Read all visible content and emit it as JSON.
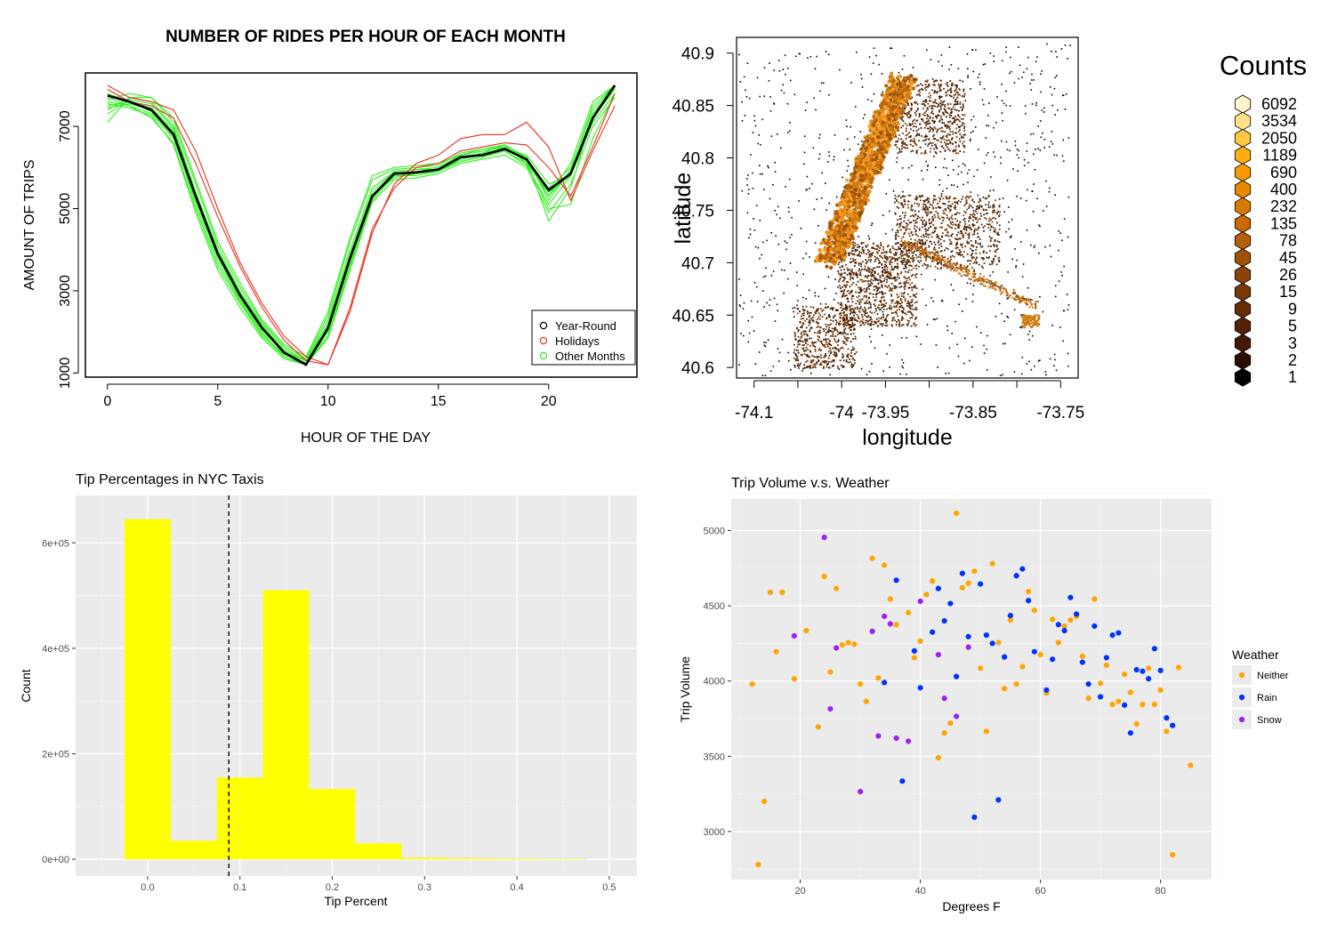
{
  "chart_data": [
    {
      "type": "line",
      "title": "NUMBER OF RIDES PER HOUR OF EACH MONTH",
      "xlabel": "HOUR OF THE DAY",
      "ylabel": "AMOUNT OF TRIPS",
      "xlim": [
        -1,
        24
      ],
      "ylim": [
        900,
        8300
      ],
      "xticks": [
        0,
        5,
        10,
        15,
        20
      ],
      "yticks": [
        1000,
        3000,
        5000,
        7000
      ],
      "x": [
        0,
        1,
        2,
        3,
        4,
        5,
        6,
        7,
        8,
        9,
        10,
        11,
        12,
        13,
        14,
        15,
        16,
        17,
        18,
        19,
        20,
        21,
        22,
        23
      ],
      "legend_position": "bottom-right",
      "colors": {
        "year_round": "#000000",
        "holidays": "#e8301c",
        "other": "#33ee22"
      },
      "series": [
        {
          "name": "Year-Round",
          "group": "year_round",
          "values": [
            7750,
            7600,
            7400,
            6800,
            5300,
            3900,
            2900,
            2100,
            1500,
            1200,
            2100,
            3800,
            5300,
            5850,
            5880,
            5950,
            6250,
            6300,
            6450,
            6200,
            5450,
            5850,
            7200,
            8000
          ]
        },
        {
          "name": "Holidays",
          "group": "holidays",
          "values": [
            8000,
            7700,
            7600,
            7400,
            6400,
            5000,
            3700,
            2700,
            1900,
            1400,
            1200,
            2600,
            4500,
            5500,
            6000,
            6100,
            6400,
            6500,
            6600,
            6550,
            6000,
            5300,
            6500,
            7800
          ]
        },
        {
          "group": "holidays",
          "values": [
            7900,
            7600,
            7500,
            7200,
            6100,
            4800,
            3600,
            2600,
            1800,
            1300,
            1200,
            2500,
            4400,
            5600,
            6100,
            6300,
            6700,
            6800,
            6800,
            7100,
            6500,
            5200,
            6400,
            7500
          ]
        },
        {
          "group": "other",
          "values": [
            7600,
            7500,
            7300,
            6700,
            5200,
            3800,
            2800,
            2000,
            1400,
            1200,
            2000,
            3700,
            5300,
            5800,
            5850,
            5900,
            6200,
            6300,
            6500,
            6250,
            5300,
            5900,
            7300,
            8000
          ]
        },
        {
          "group": "other",
          "values": [
            7500,
            7600,
            7450,
            6900,
            5300,
            3900,
            2900,
            2100,
            1500,
            1300,
            2100,
            3800,
            5300,
            5750,
            5850,
            5950,
            6150,
            6250,
            6400,
            6100,
            5400,
            5800,
            7200,
            7900
          ]
        },
        {
          "group": "other",
          "values": [
            7400,
            7700,
            7600,
            7000,
            5400,
            4000,
            3000,
            2200,
            1600,
            1300,
            2300,
            4000,
            5500,
            5900,
            5950,
            6000,
            6300,
            6400,
            6500,
            6200,
            5500,
            6000,
            7400,
            8000
          ]
        },
        {
          "group": "other",
          "values": [
            7700,
            7500,
            7200,
            6600,
            5000,
            3600,
            2700,
            1900,
            1400,
            1200,
            1900,
            3600,
            5200,
            5800,
            5800,
            5900,
            6150,
            6250,
            6450,
            6300,
            5600,
            5800,
            7100,
            7800
          ]
        },
        {
          "group": "other",
          "values": [
            7800,
            7600,
            7350,
            6750,
            5100,
            3700,
            2750,
            1950,
            1450,
            1250,
            2000,
            3700,
            5250,
            5850,
            5850,
            5950,
            6200,
            6300,
            6400,
            6050,
            5100,
            5800,
            7300,
            7950
          ]
        },
        {
          "group": "other",
          "values": [
            7650,
            7800,
            7700,
            7100,
            5600,
            4100,
            3100,
            2250,
            1650,
            1350,
            2400,
            4200,
            5700,
            5950,
            6000,
            6050,
            6350,
            6450,
            6500,
            6150,
            5300,
            6100,
            7600,
            8000
          ]
        },
        {
          "group": "other",
          "values": [
            7550,
            7450,
            7250,
            6550,
            4900,
            3500,
            2600,
            1850,
            1350,
            1200,
            1850,
            3500,
            5150,
            5700,
            5750,
            5850,
            6100,
            6200,
            6300,
            6000,
            4900,
            5600,
            7000,
            7700
          ]
        },
        {
          "group": "other",
          "values": [
            7450,
            7550,
            7400,
            6850,
            5250,
            3850,
            2850,
            2050,
            1500,
            1250,
            2050,
            3750,
            5300,
            5850,
            5900,
            5950,
            6250,
            6350,
            6450,
            6200,
            4700,
            5500,
            7300,
            7950
          ]
        },
        {
          "group": "other",
          "values": [
            7300,
            7650,
            7550,
            6950,
            5350,
            3950,
            2950,
            2150,
            1550,
            1300,
            2200,
            3900,
            5400,
            5900,
            5950,
            5950,
            6200,
            6350,
            6550,
            6250,
            5200,
            5950,
            7500,
            8000
          ]
        },
        {
          "group": "other",
          "values": [
            7100,
            7700,
            7700,
            7200,
            5700,
            4200,
            3200,
            2300,
            1700,
            1400,
            2500,
            4300,
            5800,
            6000,
            6050,
            6100,
            6300,
            6450,
            6550,
            6100,
            5000,
            5100,
            6700,
            7800
          ]
        }
      ]
    },
    {
      "type": "hexbin",
      "xlabel": "longitude",
      "ylabel": "latitude",
      "xlim": [
        -74.12,
        -73.73
      ],
      "ylim": [
        40.59,
        40.915
      ],
      "xticks": [
        -74.1,
        -74.05,
        -74,
        -73.95,
        -73.9,
        -73.85,
        -73.8,
        -73.75
      ],
      "xtick_labels": [
        "-74.1",
        "",
        "-74",
        "-73.95",
        "",
        "-73.85",
        "",
        "-73.75"
      ],
      "yticks": [
        40.6,
        40.65,
        40.7,
        40.75,
        40.8,
        40.85,
        40.9
      ],
      "ytick_labels": [
        "40.6",
        "40.65",
        "40.7",
        "40.75",
        "40.8",
        "40.85",
        "40.9"
      ],
      "legend": {
        "title": "Counts",
        "levels": [
          "6092",
          "3534",
          "2050",
          "1189",
          "690",
          "400",
          "232",
          "135",
          "78",
          "45",
          "26",
          "15",
          "9",
          "5",
          "3",
          "2",
          "1"
        ],
        "colors": [
          "#fff4cc",
          "#ffe08a",
          "#ffc840",
          "#ffae10",
          "#f59a00",
          "#e88a00",
          "#d87a00",
          "#c86a00",
          "#b55e08",
          "#a05008",
          "#8c4308",
          "#783808",
          "#662c06",
          "#552205",
          "#441804",
          "#2a0e02",
          "#000000"
        ]
      }
    },
    {
      "type": "bar",
      "title": "Tip Percentages in NYC Taxis",
      "xlabel": "Tip Percent",
      "ylabel": "Count",
      "xlim": [
        -0.078,
        0.53
      ],
      "ylim": [
        -32000,
        690000
      ],
      "xticks": [
        0.0,
        0.1,
        0.2,
        0.3,
        0.4,
        0.5
      ],
      "xtick_labels": [
        "0.0",
        "0.1",
        "0.2",
        "0.3",
        "0.4",
        "0.5"
      ],
      "yticks": [
        0,
        200000,
        400000,
        600000
      ],
      "ytick_labels": [
        "0e+00",
        "2e+05",
        "4e+05",
        "6e+05"
      ],
      "bin_width": 0.05,
      "bin_centers": [
        0.0,
        0.05,
        0.1,
        0.15,
        0.2,
        0.25,
        0.3,
        0.35,
        0.4,
        0.45
      ],
      "values": [
        645000,
        35000,
        155000,
        510000,
        133000,
        30000,
        3000,
        2000,
        1500,
        1000
      ],
      "vline": 0.088,
      "colors": {
        "bar": "#ffff00",
        "panel": "#ebebeb"
      }
    },
    {
      "type": "scatter",
      "title": "Trip Volume v.s. Weather",
      "xlabel": "Degrees F",
      "ylabel": "Trip Volume",
      "xlim": [
        8.5,
        88.5
      ],
      "ylim": [
        2680,
        5210
      ],
      "xticks": [
        20,
        40,
        60,
        80
      ],
      "yticks": [
        3000,
        3500,
        4000,
        4500,
        5000
      ],
      "legend_title": "Weather",
      "colors": {
        "Neither": "#ffa500",
        "Rain": "#0033ff",
        "Snow": "#a020f0"
      },
      "series": [
        {
          "name": "Neither",
          "points": [
            [
              12,
              3980
            ],
            [
              13,
              2780
            ],
            [
              14,
              3200
            ],
            [
              15,
              4590
            ],
            [
              16,
              4195
            ],
            [
              17,
              4590
            ],
            [
              19,
              4015
            ],
            [
              21,
              4335
            ],
            [
              23,
              3695
            ],
            [
              24,
              4695
            ],
            [
              25,
              4060
            ],
            [
              26,
              4615
            ],
            [
              27,
              4240
            ],
            [
              28,
              4255
            ],
            [
              29,
              4245
            ],
            [
              30,
              3980
            ],
            [
              31,
              3865
            ],
            [
              32,
              4815
            ],
            [
              33,
              4020
            ],
            [
              34,
              4770
            ],
            [
              35,
              4545
            ],
            [
              36,
              4375
            ],
            [
              38,
              4455
            ],
            [
              39,
              4155
            ],
            [
              40,
              4265
            ],
            [
              41,
              4575
            ],
            [
              42,
              4665
            ],
            [
              43,
              3490
            ],
            [
              44,
              3655
            ],
            [
              45,
              3720
            ],
            [
              46,
              5115
            ],
            [
              47,
              4620
            ],
            [
              48,
              4650
            ],
            [
              49,
              4730
            ],
            [
              50,
              4085
            ],
            [
              51,
              3665
            ],
            [
              52,
              4780
            ],
            [
              53,
              4255
            ],
            [
              54,
              3950
            ],
            [
              55,
              4405
            ],
            [
              56,
              3980
            ],
            [
              57,
              4095
            ],
            [
              58,
              4595
            ],
            [
              59,
              4470
            ],
            [
              60,
              4175
            ],
            [
              61,
              3920
            ],
            [
              62,
              4410
            ],
            [
              63,
              4255
            ],
            [
              64,
              4365
            ],
            [
              65,
              4405
            ],
            [
              66,
              4430
            ],
            [
              67,
              4165
            ],
            [
              68,
              3885
            ],
            [
              69,
              4545
            ],
            [
              70,
              3985
            ],
            [
              71,
              4105
            ],
            [
              72,
              3845
            ],
            [
              73,
              3865
            ],
            [
              74,
              4045
            ],
            [
              75,
              3925
            ],
            [
              76,
              3715
            ],
            [
              77,
              3845
            ],
            [
              78,
              4085
            ],
            [
              79,
              3845
            ],
            [
              80,
              3940
            ],
            [
              81,
              3665
            ],
            [
              82,
              2845
            ],
            [
              83,
              4090
            ],
            [
              85,
              3440
            ]
          ]
        },
        {
          "name": "Rain",
          "points": [
            [
              34,
              3990
            ],
            [
              36,
              4670
            ],
            [
              37,
              3335
            ],
            [
              39,
              4200
            ],
            [
              40,
              3955
            ],
            [
              42,
              4325
            ],
            [
              43,
              4615
            ],
            [
              44,
              4400
            ],
            [
              45,
              4515
            ],
            [
              46,
              4030
            ],
            [
              47,
              4715
            ],
            [
              48,
              4295
            ],
            [
              49,
              3095
            ],
            [
              50,
              4645
            ],
            [
              51,
              4305
            ],
            [
              52,
              4250
            ],
            [
              53,
              3210
            ],
            [
              54,
              4160
            ],
            [
              55,
              4435
            ],
            [
              56,
              4700
            ],
            [
              57,
              4745
            ],
            [
              58,
              4535
            ],
            [
              59,
              4195
            ],
            [
              61,
              3940
            ],
            [
              62,
              4145
            ],
            [
              63,
              4375
            ],
            [
              64,
              4335
            ],
            [
              65,
              4555
            ],
            [
              66,
              4445
            ],
            [
              67,
              4125
            ],
            [
              68,
              3980
            ],
            [
              69,
              4365
            ],
            [
              70,
              3895
            ],
            [
              71,
              4155
            ],
            [
              72,
              4305
            ],
            [
              73,
              4320
            ],
            [
              74,
              3840
            ],
            [
              75,
              3655
            ],
            [
              76,
              4075
            ],
            [
              77,
              4065
            ],
            [
              78,
              4015
            ],
            [
              79,
              4215
            ],
            [
              80,
              4070
            ],
            [
              81,
              3755
            ],
            [
              82,
              3705
            ]
          ]
        },
        {
          "name": "Snow",
          "points": [
            [
              19,
              4300
            ],
            [
              24,
              4955
            ],
            [
              25,
              3815
            ],
            [
              26,
              4220
            ],
            [
              32,
              4330
            ],
            [
              33,
              3635
            ],
            [
              34,
              4430
            ],
            [
              35,
              4380
            ],
            [
              36,
              3620
            ],
            [
              38,
              3600
            ],
            [
              40,
              4530
            ],
            [
              43,
              4175
            ],
            [
              44,
              3885
            ],
            [
              46,
              3765
            ],
            [
              48,
              4225
            ],
            [
              30,
              3265
            ]
          ]
        }
      ]
    }
  ]
}
